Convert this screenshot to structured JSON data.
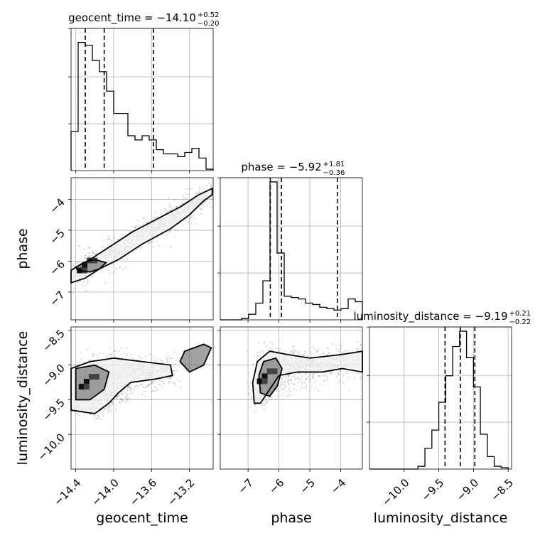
{
  "chart_data": {
    "type": "corner",
    "parameters": [
      {
        "name": "geocent_time",
        "range": [
          -14.45,
          -12.95
        ],
        "ticks": [
          -14.4,
          -14.0,
          -13.6,
          -13.2
        ],
        "tick_labels": [
          "−14.4",
          "−14.0",
          "−13.6",
          "−13.2"
        ],
        "title": "geocent_time = −14.10",
        "title_sup": "+0.52",
        "title_sub": "−0.20",
        "quantiles": [
          -14.3,
          -14.1,
          -13.58
        ],
        "hist_edges": [
          -14.45,
          -14.375,
          -14.3,
          -14.225,
          -14.15,
          -14.075,
          -14.0,
          -13.925,
          -13.85,
          -13.775,
          -13.7,
          -13.625,
          -13.55,
          -13.475,
          -13.4,
          -13.325,
          -13.25,
          -13.175,
          -13.1,
          -13.025,
          -12.95
        ],
        "hist_values": [
          0.28,
          0.92,
          0.9,
          0.79,
          0.71,
          0.57,
          0.41,
          0.41,
          0.25,
          0.22,
          0.25,
          0.22,
          0.15,
          0.12,
          0.12,
          0.1,
          0.13,
          0.16,
          0.09,
          0.01
        ]
      },
      {
        "name": "phase",
        "range": [
          -7.9,
          -3.3
        ],
        "ticks": [
          -7,
          -6,
          -5,
          -4
        ],
        "tick_labels": [
          "−7",
          "−6",
          "−5",
          "−4"
        ],
        "title": "phase = −5.92",
        "title_sup": "+1.81",
        "title_sub": "−0.36",
        "quantiles": [
          -6.28,
          -5.92,
          -4.11
        ],
        "hist_edges": [
          -7.9,
          -7.67,
          -7.44,
          -7.21,
          -6.98,
          -6.75,
          -6.52,
          -6.29,
          -6.06,
          -5.83,
          -5.6,
          -5.37,
          -5.14,
          -4.91,
          -4.68,
          -4.45,
          -4.22,
          -3.99,
          -3.76,
          -3.53,
          -3.3
        ],
        "hist_values": [
          0.0,
          0.0,
          0.0,
          0.01,
          0.04,
          0.12,
          0.28,
          0.99,
          0.48,
          0.17,
          0.16,
          0.15,
          0.12,
          0.11,
          0.09,
          0.08,
          0.07,
          0.08,
          0.15,
          0.13
        ],
        "contours": {
          "vs_geocent_time": [
            [
              [
                -14.45,
                -6.7
              ],
              [
                -14.3,
                -6.55
              ],
              [
                -14.15,
                -6.25
              ],
              [
                -13.95,
                -5.95
              ],
              [
                -13.7,
                -5.45
              ],
              [
                -13.4,
                -4.95
              ],
              [
                -13.2,
                -4.5
              ],
              [
                -13.05,
                -4.05
              ],
              [
                -12.96,
                -3.85
              ],
              [
                -12.96,
                -3.65
              ],
              [
                -13.1,
                -3.85
              ],
              [
                -13.3,
                -4.25
              ],
              [
                -13.55,
                -4.65
              ],
              [
                -13.8,
                -5.05
              ],
              [
                -14.05,
                -5.55
              ],
              [
                -14.25,
                -5.95
              ],
              [
                -14.4,
                -6.2
              ],
              [
                -14.45,
                -6.3
              ]
            ],
            [
              [
                -14.38,
                -6.3
              ],
              [
                -14.25,
                -6.35
              ],
              [
                -14.15,
                -6.25
              ],
              [
                -14.08,
                -6.05
              ],
              [
                -14.2,
                -5.95
              ],
              [
                -14.32,
                -6.05
              ],
              [
                -14.4,
                -6.2
              ]
            ]
          ]
        }
      },
      {
        "name": "luminosity_distance",
        "range": [
          -10.5,
          -8.45
        ],
        "ticks": [
          -10.0,
          -9.5,
          -9.0,
          -8.5
        ],
        "tick_labels": [
          "−10.0",
          "−9.5",
          "−9.0",
          "−8.5"
        ],
        "title": "luminosity_distance = −9.19",
        "title_sup": "+0.21",
        "title_sub": "−0.22",
        "quantiles": [
          -9.41,
          -9.19,
          -8.98
        ],
        "hist_edges": [
          -10.5,
          -10.4,
          -10.3,
          -10.2,
          -10.1,
          -10.0,
          -9.9,
          -9.8,
          -9.7,
          -9.6,
          -9.5,
          -9.4,
          -9.3,
          -9.2,
          -9.1,
          -9.0,
          -8.9,
          -8.8,
          -8.7,
          -8.6,
          -8.5
        ],
        "hist_values": [
          0.0,
          0.0,
          0.0,
          0.0,
          0.0,
          0.0,
          0.0,
          0.02,
          0.15,
          0.28,
          0.48,
          0.67,
          0.88,
          0.99,
          0.8,
          0.59,
          0.25,
          0.09,
          0.02,
          0.01
        ],
        "contours": {
          "vs_geocent_time": [
            [
              [
                -14.45,
                -9.65
              ],
              [
                -14.2,
                -9.7
              ],
              [
                -14.05,
                -9.55
              ],
              [
                -13.95,
                -9.4
              ],
              [
                -13.82,
                -9.25
              ],
              [
                -13.55,
                -9.2
              ],
              [
                -13.38,
                -9.15
              ],
              [
                -13.4,
                -9.0
              ],
              [
                -13.7,
                -8.95
              ],
              [
                -14.0,
                -8.9
              ],
              [
                -14.25,
                -8.95
              ],
              [
                -14.45,
                -9.05
              ]
            ],
            [
              [
                -14.4,
                -9.5
              ],
              [
                -14.25,
                -9.5
              ],
              [
                -14.1,
                -9.35
              ],
              [
                -14.05,
                -9.1
              ],
              [
                -14.2,
                -9.0
              ],
              [
                -14.4,
                -9.05
              ]
            ],
            [
              [
                -13.2,
                -9.1
              ],
              [
                -13.05,
                -9.0
              ],
              [
                -12.97,
                -8.75
              ],
              [
                -13.05,
                -8.7
              ],
              [
                -13.25,
                -8.8
              ],
              [
                -13.3,
                -8.95
              ]
            ]
          ],
          "vs_phase": [
            [
              [
                -6.8,
                -9.55
              ],
              [
                -6.6,
                -9.55
              ],
              [
                -6.3,
                -9.35
              ],
              [
                -6.0,
                -9.15
              ],
              [
                -5.4,
                -9.1
              ],
              [
                -4.6,
                -9.1
              ],
              [
                -3.95,
                -9.05
              ],
              [
                -3.3,
                -9.1
              ],
              [
                -3.3,
                -8.8
              ],
              [
                -4.0,
                -8.85
              ],
              [
                -5.0,
                -8.9
              ],
              [
                -5.7,
                -8.85
              ],
              [
                -6.3,
                -8.8
              ],
              [
                -6.7,
                -8.95
              ],
              [
                -6.85,
                -9.25
              ]
            ],
            [
              [
                -6.6,
                -9.4
              ],
              [
                -6.3,
                -9.45
              ],
              [
                -6.05,
                -9.3
              ],
              [
                -5.9,
                -9.05
              ],
              [
                -6.1,
                -8.9
              ],
              [
                -6.5,
                -8.95
              ],
              [
                -6.65,
                -9.15
              ]
            ]
          ]
        }
      }
    ],
    "xlabels": [
      "geocent_time",
      "phase",
      "luminosity_distance"
    ],
    "ylabels": [
      "phase",
      "luminosity_distance"
    ],
    "grid": true
  }
}
